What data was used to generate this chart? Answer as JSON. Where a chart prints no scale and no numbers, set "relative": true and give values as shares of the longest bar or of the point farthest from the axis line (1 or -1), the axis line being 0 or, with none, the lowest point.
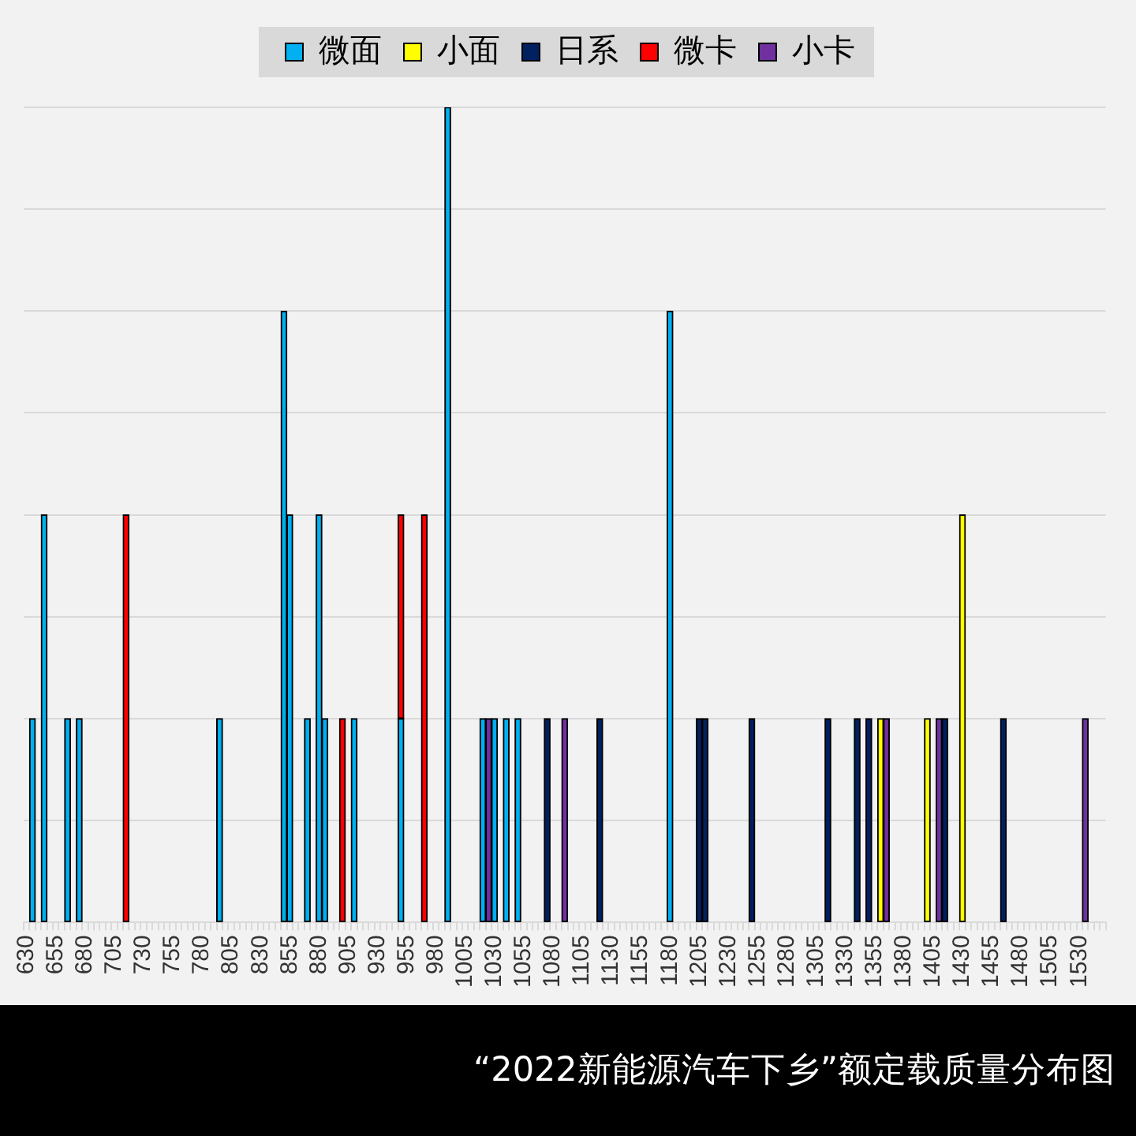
{
  "chart_data": {
    "type": "bar",
    "title": "“2022新能源汽车下乡”额定载质量分布图",
    "stacked": true,
    "relative": true,
    "legend": "top",
    "grid": "y",
    "categories": [
      "630",
      null,
      null,
      null,
      null,
      "655",
      null,
      null,
      null,
      null,
      "680",
      null,
      null,
      null,
      null,
      "705",
      null,
      null,
      null,
      null,
      "730",
      null,
      null,
      null,
      null,
      "755",
      null,
      null,
      null,
      null,
      "780",
      null,
      null,
      null,
      null,
      "805",
      null,
      null,
      null,
      null,
      "830",
      null,
      null,
      null,
      null,
      "855",
      null,
      null,
      null,
      null,
      "880",
      null,
      null,
      null,
      null,
      "905",
      null,
      null,
      null,
      null,
      "930",
      null,
      null,
      null,
      null,
      "955",
      null,
      null,
      null,
      null,
      "980",
      null,
      null,
      null,
      null,
      "1005",
      null,
      null,
      null,
      null,
      "1030",
      null,
      null,
      null,
      null,
      "1055",
      null,
      null,
      null,
      null,
      "1080",
      null,
      null,
      null,
      null,
      "1105",
      null,
      null,
      null,
      null,
      "1130",
      null,
      null,
      null,
      null,
      "1155",
      null,
      null,
      null,
      null,
      "1180",
      null,
      null,
      null,
      null,
      "1205",
      null,
      null,
      null,
      null,
      "1230",
      null,
      null,
      null,
      null,
      "1255",
      null,
      null,
      null,
      null,
      "1280",
      null,
      null,
      null,
      null,
      "1305",
      null,
      null,
      null,
      null,
      "1330",
      null,
      null,
      null,
      null,
      "1355",
      null,
      null,
      null,
      null,
      "1380",
      null,
      null,
      null,
      null,
      "1405",
      null,
      null,
      null,
      null,
      "1430",
      null,
      null,
      null,
      null,
      "1455",
      null,
      null,
      null,
      null,
      "1480",
      null,
      null,
      null,
      null,
      "1505",
      null,
      null,
      null,
      null,
      "1530",
      null,
      null,
      null,
      null
    ],
    "series": [
      {
        "name": "微面",
        "color": "#00b0f0",
        "values": [
          null,
          0.25,
          null,
          0.5,
          null,
          null,
          null,
          0.25,
          null,
          0.25,
          null,
          null,
          null,
          null,
          null,
          null,
          null,
          null,
          null,
          null,
          null,
          null,
          null,
          null,
          null,
          null,
          null,
          null,
          null,
          null,
          null,
          null,
          null,
          0.25,
          null,
          null,
          null,
          null,
          null,
          null,
          null,
          null,
          null,
          null,
          0.75,
          0.5,
          null,
          null,
          0.25,
          null,
          0.5,
          0.25,
          null,
          null,
          null,
          null,
          0.25,
          null,
          null,
          null,
          null,
          null,
          null,
          null,
          0.25,
          null,
          null,
          null,
          null,
          null,
          null,
          null,
          1,
          null,
          null,
          null,
          null,
          null,
          0.25,
          null,
          0.25,
          null,
          0.25,
          null,
          0.25,
          null,
          null,
          null,
          null,
          null,
          null,
          null,
          null,
          null,
          null,
          null,
          null,
          null,
          null,
          null,
          null,
          null,
          null,
          null,
          null,
          null,
          null,
          null,
          null,
          null,
          0.75,
          null,
          null,
          null,
          null,
          null,
          null,
          null,
          null,
          null,
          null,
          null,
          null,
          null,
          null,
          null,
          null,
          null,
          null,
          null,
          null,
          null,
          null,
          null,
          null,
          null,
          null,
          null,
          null,
          null,
          null,
          null,
          null,
          null,
          null,
          null,
          null,
          null,
          null,
          null,
          null,
          null,
          null,
          null,
          null,
          null,
          null,
          null,
          null,
          null,
          null,
          null,
          null,
          null,
          null,
          null,
          null,
          null,
          null,
          null,
          null,
          null,
          null,
          null,
          null,
          null,
          null,
          null,
          null,
          null,
          null,
          null,
          null,
          null,
          null
        ]
      },
      {
        "name": "小面",
        "color": "#ffff00",
        "values": [
          null,
          null,
          null,
          null,
          null,
          null,
          null,
          null,
          null,
          null,
          null,
          null,
          null,
          null,
          null,
          null,
          null,
          null,
          null,
          null,
          null,
          null,
          null,
          null,
          null,
          null,
          null,
          null,
          null,
          null,
          null,
          null,
          null,
          null,
          null,
          null,
          null,
          null,
          null,
          null,
          null,
          null,
          null,
          null,
          null,
          null,
          null,
          null,
          null,
          null,
          null,
          null,
          null,
          null,
          null,
          null,
          null,
          null,
          null,
          null,
          null,
          null,
          null,
          null,
          null,
          null,
          null,
          null,
          null,
          null,
          null,
          null,
          null,
          null,
          null,
          null,
          null,
          null,
          null,
          null,
          null,
          null,
          null,
          null,
          null,
          null,
          null,
          null,
          null,
          null,
          null,
          null,
          null,
          null,
          null,
          null,
          null,
          null,
          null,
          null,
          null,
          null,
          null,
          null,
          null,
          null,
          null,
          null,
          null,
          null,
          null,
          null,
          null,
          null,
          null,
          null,
          null,
          null,
          null,
          null,
          null,
          null,
          null,
          null,
          null,
          null,
          null,
          null,
          null,
          null,
          null,
          null,
          null,
          null,
          null,
          null,
          null,
          null,
          null,
          null,
          null,
          null,
          null,
          null,
          null,
          null,
          0.25,
          null,
          null,
          null,
          null,
          null,
          null,
          null,
          0.25,
          null,
          null,
          null,
          null,
          null,
          0.5,
          null,
          null,
          null,
          null,
          null,
          null,
          null,
          null,
          null,
          null,
          null,
          null,
          null,
          null,
          null,
          null,
          null,
          null,
          null,
          null,
          null,
          null,
          null,
          null
        ]
      },
      {
        "name": "日系",
        "color": "#002060",
        "values": [
          null,
          null,
          null,
          null,
          null,
          null,
          null,
          null,
          null,
          null,
          null,
          null,
          null,
          null,
          null,
          null,
          null,
          null,
          null,
          null,
          null,
          null,
          null,
          null,
          null,
          null,
          null,
          null,
          null,
          null,
          null,
          null,
          null,
          null,
          null,
          null,
          null,
          null,
          null,
          null,
          null,
          null,
          null,
          null,
          null,
          null,
          null,
          null,
          null,
          null,
          null,
          null,
          null,
          null,
          null,
          null,
          null,
          null,
          null,
          null,
          null,
          null,
          null,
          null,
          null,
          null,
          null,
          null,
          null,
          null,
          null,
          null,
          null,
          null,
          null,
          null,
          null,
          null,
          null,
          null,
          null,
          null,
          null,
          null,
          null,
          null,
          null,
          null,
          null,
          0.25,
          null,
          null,
          null,
          null,
          null,
          null,
          null,
          null,
          0.25,
          null,
          null,
          null,
          null,
          null,
          null,
          null,
          null,
          null,
          null,
          null,
          null,
          null,
          null,
          null,
          null,
          0.25,
          0.25,
          null,
          null,
          null,
          null,
          null,
          null,
          null,
          0.25,
          null,
          null,
          null,
          null,
          null,
          null,
          null,
          null,
          null,
          null,
          null,
          null,
          0.25,
          null,
          null,
          null,
          null,
          0.25,
          null,
          0.25,
          null,
          null,
          null,
          null,
          null,
          null,
          null,
          null,
          null,
          null,
          null,
          null,
          0.25,
          null,
          null,
          null,
          null,
          null,
          null,
          null,
          null,
          null,
          0.25,
          null,
          null,
          null,
          null,
          null,
          null,
          null,
          null,
          null,
          null,
          null,
          null,
          null,
          null,
          null,
          null,
          null
        ]
      },
      {
        "name": "微卡",
        "color": "#ff0000",
        "values": [
          null,
          null,
          null,
          null,
          null,
          null,
          null,
          null,
          null,
          null,
          null,
          null,
          null,
          null,
          null,
          null,
          null,
          0.5,
          null,
          null,
          null,
          null,
          null,
          null,
          null,
          null,
          null,
          null,
          null,
          null,
          null,
          null,
          null,
          null,
          null,
          null,
          null,
          null,
          null,
          null,
          null,
          null,
          null,
          null,
          null,
          null,
          null,
          null,
          null,
          null,
          null,
          null,
          null,
          null,
          0.25,
          null,
          null,
          null,
          null,
          null,
          null,
          null,
          null,
          null,
          0.25,
          null,
          null,
          null,
          0.5,
          null,
          null,
          null,
          null,
          null,
          null,
          null,
          null,
          null,
          null,
          null,
          null,
          null,
          null,
          null,
          null,
          null,
          null,
          null,
          null,
          null,
          null,
          null,
          null,
          null,
          null,
          null,
          null,
          null,
          null,
          null,
          null,
          null,
          null,
          null,
          null,
          null,
          null,
          null,
          null,
          null,
          null,
          null,
          null,
          null,
          null,
          null,
          null,
          null,
          null,
          null,
          null,
          null,
          null,
          null,
          null,
          null,
          null,
          null,
          null,
          null,
          null,
          null,
          null,
          null,
          null,
          null,
          null,
          null,
          null,
          null,
          null,
          null,
          null,
          null,
          null,
          null,
          null,
          null,
          null,
          null,
          null,
          null,
          null,
          null,
          null,
          null,
          null,
          null,
          null,
          null,
          null,
          null,
          null,
          null,
          null,
          null,
          null,
          null,
          null,
          null,
          null,
          null,
          null,
          null,
          null,
          null,
          null,
          null,
          null,
          null,
          null,
          null,
          null,
          null,
          null
        ]
      },
      {
        "name": "小卡",
        "color": "#7030a0",
        "values": [
          null,
          null,
          null,
          null,
          null,
          null,
          null,
          null,
          null,
          null,
          null,
          null,
          null,
          null,
          null,
          null,
          null,
          null,
          null,
          null,
          null,
          null,
          null,
          null,
          null,
          null,
          null,
          null,
          null,
          null,
          null,
          null,
          null,
          null,
          null,
          null,
          null,
          null,
          null,
          null,
          null,
          null,
          null,
          null,
          null,
          null,
          null,
          null,
          null,
          null,
          null,
          null,
          null,
          null,
          null,
          null,
          null,
          null,
          null,
          null,
          null,
          null,
          null,
          null,
          null,
          null,
          null,
          null,
          null,
          null,
          null,
          null,
          null,
          null,
          null,
          null,
          null,
          null,
          null,
          0.25,
          null,
          null,
          null,
          null,
          null,
          null,
          null,
          null,
          null,
          null,
          null,
          null,
          0.25,
          null,
          null,
          null,
          null,
          null,
          null,
          null,
          null,
          null,
          null,
          null,
          null,
          null,
          null,
          null,
          null,
          null,
          null,
          null,
          null,
          null,
          null,
          null,
          null,
          null,
          null,
          null,
          null,
          null,
          null,
          null,
          null,
          null,
          null,
          null,
          null,
          null,
          null,
          null,
          null,
          null,
          null,
          null,
          null,
          null,
          null,
          null,
          null,
          null,
          null,
          null,
          null,
          null,
          null,
          0.25,
          null,
          null,
          null,
          null,
          null,
          null,
          null,
          null,
          0.25,
          null,
          null,
          null,
          null,
          null,
          null,
          null,
          null,
          null,
          null,
          null,
          null,
          null,
          null,
          null,
          null,
          null,
          null,
          null,
          null,
          null,
          null,
          null,
          null,
          0.25,
          null,
          null,
          null
        ]
      }
    ]
  }
}
